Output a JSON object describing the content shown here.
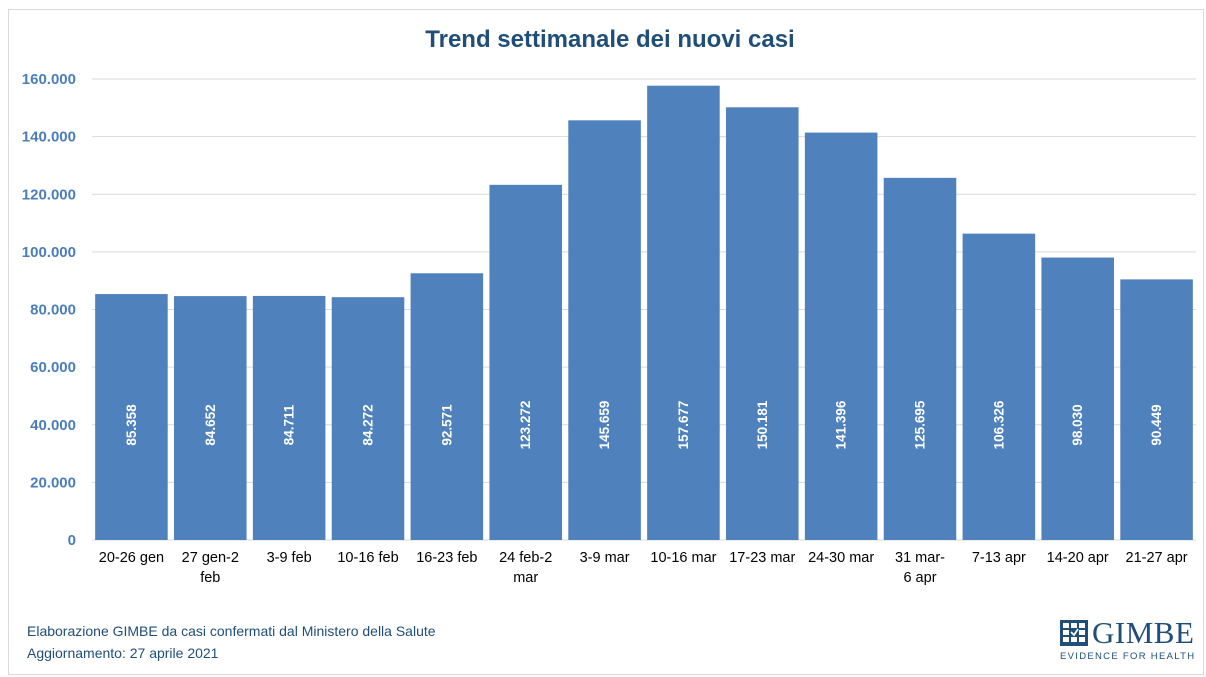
{
  "chart_data": {
    "type": "bar",
    "title": "Trend settimanale dei nuovi casi",
    "xlabel": "",
    "ylabel": "",
    "ylim": [
      0,
      160000
    ],
    "yticks": [
      0,
      20000,
      40000,
      60000,
      80000,
      100000,
      120000,
      140000,
      160000
    ],
    "ytick_labels": [
      "0",
      "20.000",
      "40.000",
      "60.000",
      "80.000",
      "100.000",
      "120.000",
      "140.000",
      "160.000"
    ],
    "grid": true,
    "bar_color": "#4f81bd",
    "categories": [
      [
        "20-26 gen"
      ],
      [
        "27 gen-2",
        "feb"
      ],
      [
        "3-9 feb"
      ],
      [
        "10-16 feb"
      ],
      [
        "16-23 feb"
      ],
      [
        "24 feb-2",
        "mar"
      ],
      [
        "3-9 mar"
      ],
      [
        "10-16 mar"
      ],
      [
        "17-23 mar"
      ],
      [
        "24-30 mar"
      ],
      [
        "31 mar-",
        "6 apr"
      ],
      [
        "7-13 apr"
      ],
      [
        "14-20 apr"
      ],
      [
        "21-27 apr"
      ]
    ],
    "values": [
      85358,
      84652,
      84711,
      84272,
      92571,
      123272,
      145659,
      157677,
      150181,
      141396,
      125695,
      106326,
      98030,
      90449
    ],
    "data_labels": [
      "85.358",
      "84.652",
      "84.711",
      "84.272",
      "92.571",
      "123.272",
      "145.659",
      "157.677",
      "150.181",
      "141.396",
      "125.695",
      "106.326",
      "98.030",
      "90.449"
    ]
  },
  "footer": {
    "source": "Elaborazione GIMBE da casi confermati dal Ministero della Salute",
    "update": "Aggiornamento:  27 aprile 2021"
  },
  "logo": {
    "word": "GIMBE",
    "tagline": "EVIDENCE FOR HEALTH",
    "color": "#1f4e79"
  }
}
